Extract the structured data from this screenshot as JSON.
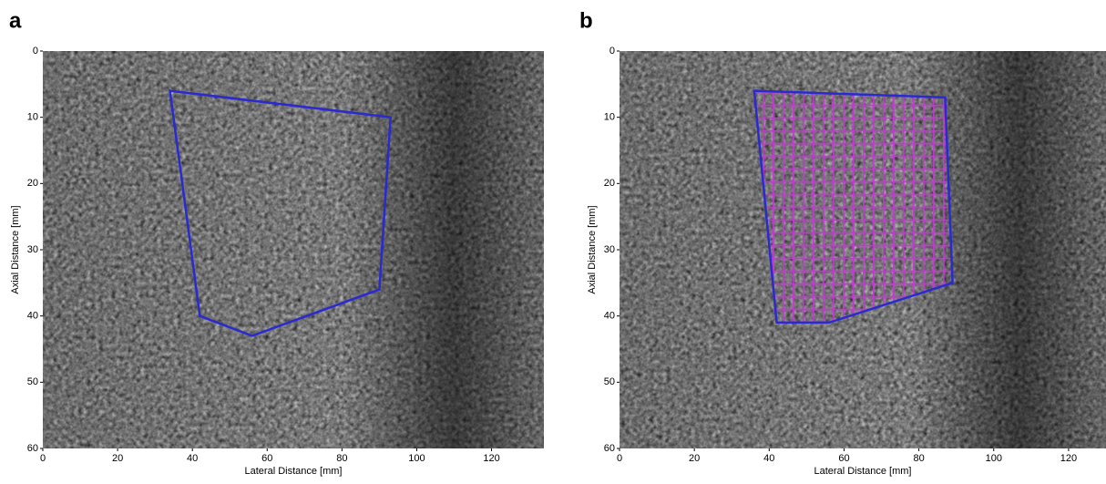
{
  "chart_data": [
    {
      "type": "polygon",
      "panel_label": "a",
      "xlabel": "Lateral Distance [mm]",
      "ylabel": "Axial Distance [mm]",
      "xlim": [
        0,
        134
      ],
      "ylim": [
        0,
        60
      ],
      "xticks": [
        0,
        20,
        40,
        60,
        80,
        100,
        120
      ],
      "yticks": [
        0,
        10,
        20,
        30,
        40,
        50,
        60
      ],
      "roi": {
        "x": [
          34,
          93,
          90,
          56,
          42
        ],
        "y": [
          6,
          10,
          36,
          43,
          40
        ]
      },
      "color": "#2a2ad0"
    },
    {
      "type": "polygon",
      "panel_label": "b",
      "xlabel": "Lateral Distance [mm]",
      "ylabel": "Axial Distance [mm]",
      "xlim": [
        0,
        130
      ],
      "ylim": [
        0,
        60
      ],
      "xticks": [
        0,
        20,
        40,
        60,
        80,
        100,
        120
      ],
      "yticks": [
        0,
        10,
        20,
        30,
        40,
        50,
        60
      ],
      "roi": {
        "x": [
          36,
          87,
          89,
          56,
          42
        ],
        "y": [
          6,
          7,
          35,
          41,
          41
        ]
      },
      "color": "#2a2ad0",
      "grid_color": "#cc33dd"
    }
  ]
}
